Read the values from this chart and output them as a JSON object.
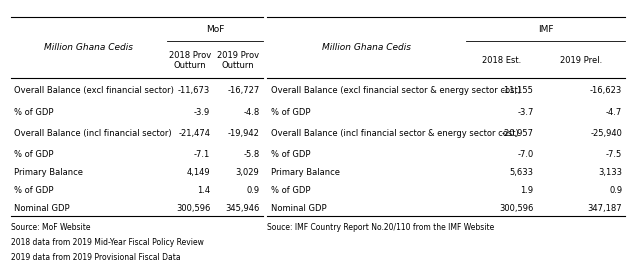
{
  "left_header_col": "Million Ghana Cedis",
  "mof_header": "MoF",
  "imf_header": "IMF",
  "mof_col1": "2018 Prov\nOutturn",
  "mof_col2": "2019 Prov\nOutturn",
  "imf_col1": "2018 Est.",
  "imf_col2": "2019 Prel.",
  "right_header_col": "Million Ghana Cedis",
  "rows": [
    [
      "Overall Balance (excl financial sector)",
      "-11,673",
      "-16,727",
      "Overall Balance (excl financial sector & energy sector cost)",
      "-11,155",
      "-16,623"
    ],
    [
      "% of GDP",
      "-3.9",
      "-4.8",
      "% of GDP",
      "-3.7",
      "-4.7"
    ],
    [
      "Overall Balance (incl financial sector)",
      "-21,474",
      "-19,942",
      "Overall Balance (incl financial sector & energy sector cost)",
      "-20,957",
      "-25,940"
    ],
    [
      "% of GDP",
      "-7.1",
      "-5.8",
      "% of GDP",
      "-7.0",
      "-7.5"
    ],
    [
      "Primary Balance",
      "4,149",
      "3,029",
      "Primary Balance",
      "5,633",
      "3,133"
    ],
    [
      "% of GDP",
      "1.4",
      "0.9",
      "% of GDP",
      "1.9",
      "0.9"
    ],
    [
      "Nominal GDP",
      "300,596",
      "345,946",
      "Nominal GDP",
      "300,596",
      "347,187"
    ]
  ],
  "source_left1": "Source: MoF Website",
  "source_left2": "2018 data from 2019 Mid-Year Fiscal Policy Review",
  "source_left3": "2019 data from 2019 Provisional Fiscal Data",
  "source_right": "Souce: IMF Country Report No.20/110 from the IMF Website",
  "bg_color": "#ffffff",
  "line_color": "#000000",
  "font_size": 6.5,
  "small_font_size": 6.0,
  "note_font_size": 5.5
}
